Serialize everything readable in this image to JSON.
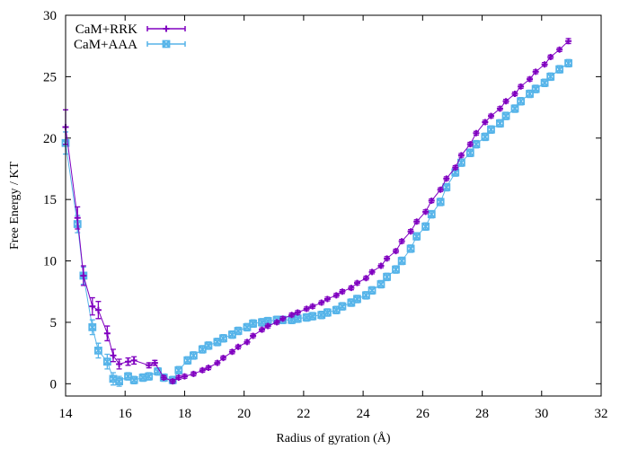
{
  "chart_data": {
    "type": "scatter",
    "title": "",
    "xlabel": "Radius of gyration (Å)",
    "ylabel": "Free Energy / KT",
    "xlim": [
      14,
      32
    ],
    "ylim": [
      -1,
      30
    ],
    "xticks": [
      14,
      16,
      18,
      20,
      22,
      24,
      26,
      28,
      30,
      32
    ],
    "yticks": [
      0,
      5,
      10,
      15,
      20,
      25,
      30
    ],
    "grid": false,
    "legend_position": "top-left",
    "series": [
      {
        "name": "CaM+RRK",
        "color": "#8000c0",
        "marker": "plus",
        "x": [
          14.0,
          14.4,
          14.6,
          14.9,
          15.1,
          15.4,
          15.6,
          15.8,
          16.1,
          16.3,
          16.8,
          17.0,
          17.3,
          17.6,
          17.8,
          18.0,
          18.3,
          18.6,
          18.8,
          19.1,
          19.3,
          19.6,
          19.8,
          20.1,
          20.3,
          20.6,
          20.8,
          21.1,
          21.3,
          21.6,
          21.8,
          22.1,
          22.3,
          22.6,
          22.8,
          23.1,
          23.3,
          23.6,
          23.8,
          24.1,
          24.3,
          24.6,
          24.8,
          25.1,
          25.3,
          25.6,
          25.8,
          26.1,
          26.3,
          26.6,
          26.8,
          27.1,
          27.3,
          27.6,
          27.8,
          28.1,
          28.3,
          28.6,
          28.8,
          29.1,
          29.3,
          29.6,
          29.8,
          30.1,
          30.3,
          30.6,
          30.9
        ],
        "y": [
          20.9,
          13.5,
          8.8,
          6.3,
          6.0,
          4.1,
          2.3,
          1.6,
          1.8,
          1.9,
          1.5,
          1.7,
          0.5,
          0.2,
          0.5,
          0.6,
          0.8,
          1.1,
          1.3,
          1.7,
          2.1,
          2.6,
          3.0,
          3.4,
          3.9,
          4.4,
          4.7,
          5.0,
          5.3,
          5.6,
          5.8,
          6.1,
          6.3,
          6.6,
          6.9,
          7.2,
          7.5,
          7.8,
          8.2,
          8.6,
          9.1,
          9.6,
          10.2,
          10.8,
          11.6,
          12.4,
          13.2,
          14.0,
          14.9,
          15.8,
          16.7,
          17.6,
          18.6,
          19.5,
          20.4,
          21.3,
          21.8,
          22.4,
          23.0,
          23.6,
          24.2,
          24.8,
          25.4,
          26.0,
          26.6,
          27.2,
          27.9
        ],
        "yerr": [
          1.4,
          0.9,
          0.8,
          0.7,
          0.7,
          0.6,
          0.5,
          0.4,
          0.3,
          0.3,
          0.2,
          0.2,
          0.15,
          0.15,
          0.15,
          0.15,
          0.15,
          0.15,
          0.15,
          0.15,
          0.15,
          0.15,
          0.15,
          0.15,
          0.15,
          0.15,
          0.15,
          0.15,
          0.15,
          0.15,
          0.15,
          0.15,
          0.15,
          0.15,
          0.15,
          0.15,
          0.15,
          0.15,
          0.15,
          0.15,
          0.15,
          0.15,
          0.15,
          0.15,
          0.15,
          0.15,
          0.15,
          0.15,
          0.15,
          0.15,
          0.15,
          0.15,
          0.15,
          0.15,
          0.15,
          0.15,
          0.15,
          0.15,
          0.15,
          0.15,
          0.15,
          0.15,
          0.15,
          0.15,
          0.15,
          0.15,
          0.2
        ]
      },
      {
        "name": "CaM+AAA",
        "color": "#56b4e9",
        "marker": "x-box",
        "x": [
          14.0,
          14.4,
          14.6,
          14.9,
          15.1,
          15.4,
          15.6,
          15.8,
          16.1,
          16.3,
          16.6,
          16.8,
          17.1,
          17.3,
          17.6,
          17.8,
          18.1,
          18.3,
          18.6,
          18.8,
          19.1,
          19.3,
          19.6,
          19.8,
          20.1,
          20.3,
          20.6,
          20.8,
          21.1,
          21.3,
          21.6,
          21.8,
          22.1,
          22.3,
          22.6,
          22.8,
          23.1,
          23.3,
          23.6,
          23.8,
          24.1,
          24.3,
          24.6,
          24.8,
          25.1,
          25.3,
          25.6,
          25.8,
          26.1,
          26.3,
          26.6,
          26.8,
          27.1,
          27.3,
          27.6,
          27.8,
          28.1,
          28.3,
          28.6,
          28.8,
          29.1,
          29.3,
          29.6,
          29.8,
          30.1,
          30.3,
          30.6,
          30.9
        ],
        "y": [
          19.6,
          13.0,
          8.8,
          4.6,
          2.7,
          1.8,
          0.4,
          0.2,
          0.6,
          0.3,
          0.5,
          0.6,
          1.0,
          0.5,
          0.3,
          1.1,
          1.9,
          2.3,
          2.8,
          3.1,
          3.4,
          3.7,
          4.0,
          4.3,
          4.6,
          4.9,
          5.0,
          5.1,
          5.2,
          5.2,
          5.2,
          5.3,
          5.4,
          5.5,
          5.6,
          5.8,
          6.0,
          6.3,
          6.6,
          6.9,
          7.2,
          7.6,
          8.1,
          8.7,
          9.3,
          10.0,
          11.0,
          12.0,
          12.8,
          13.8,
          14.8,
          16.0,
          17.2,
          18.0,
          18.8,
          19.5,
          20.1,
          20.7,
          21.2,
          21.8,
          22.4,
          23.0,
          23.6,
          24.0,
          24.5,
          25.0,
          25.6,
          26.1
        ],
        "yerr": [
          0.9,
          0.7,
          0.7,
          0.6,
          0.6,
          0.6,
          0.5,
          0.4,
          0.3,
          0.3,
          0.3,
          0.3,
          0.3,
          0.3,
          0.3,
          0.3,
          0.3,
          0.3,
          0.3,
          0.3,
          0.3,
          0.3,
          0.3,
          0.3,
          0.3,
          0.3,
          0.3,
          0.3,
          0.3,
          0.3,
          0.3,
          0.3,
          0.3,
          0.3,
          0.3,
          0.3,
          0.3,
          0.3,
          0.3,
          0.3,
          0.3,
          0.3,
          0.3,
          0.3,
          0.3,
          0.3,
          0.3,
          0.3,
          0.3,
          0.3,
          0.3,
          0.3,
          0.3,
          0.3,
          0.3,
          0.3,
          0.3,
          0.3,
          0.3,
          0.3,
          0.3,
          0.3,
          0.3,
          0.3,
          0.3,
          0.3,
          0.3,
          0.3
        ]
      }
    ]
  }
}
